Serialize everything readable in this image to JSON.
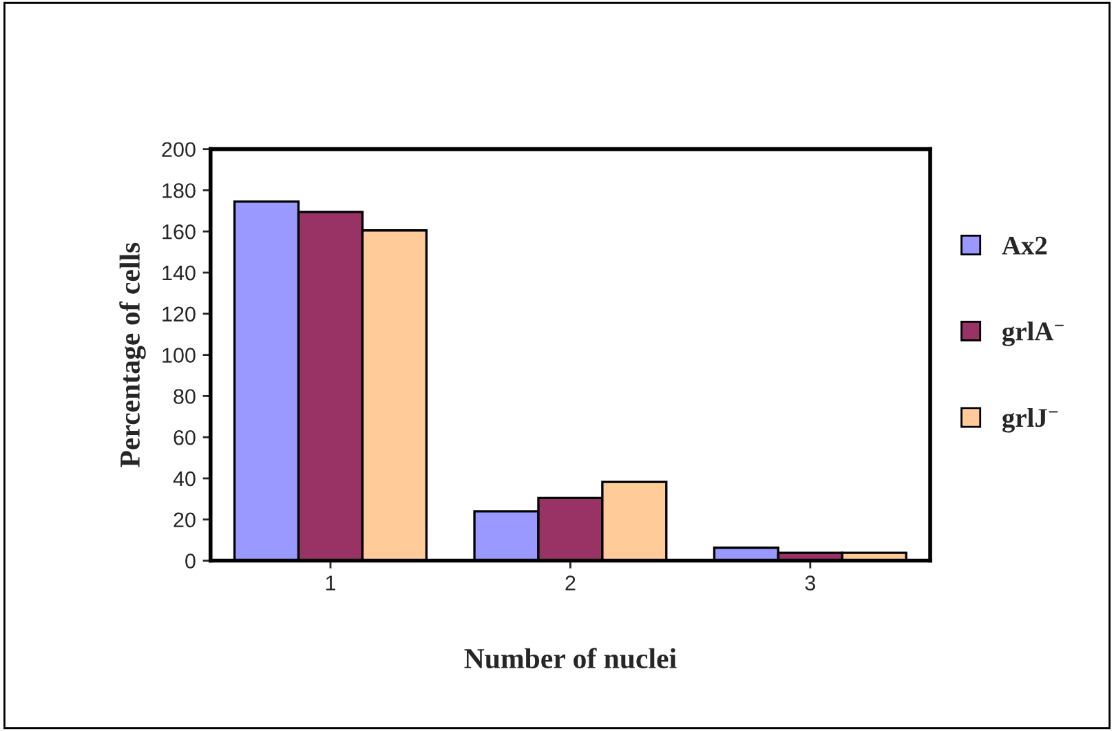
{
  "chart_data": {
    "type": "bar",
    "xlabel": "Number of nuclei",
    "ylabel": "Percentage of cells",
    "categories": [
      "1",
      "2",
      "3"
    ],
    "series": [
      {
        "name": "Ax2",
        "color": "#9999ff",
        "values": [
          174.5,
          24,
          6.3
        ]
      },
      {
        "name": "grlA$^{−}$",
        "color": "#993366",
        "values": [
          169.5,
          30.5,
          3.8
        ]
      },
      {
        "name": "grlJ$^{−}$",
        "color": "#ffcc99",
        "values": [
          160.5,
          38.3,
          3.8
        ]
      }
    ],
    "ylim": [
      0,
      200
    ],
    "yticks": [
      0,
      20,
      40,
      60,
      80,
      100,
      120,
      140,
      160,
      180,
      200
    ],
    "grid": false,
    "legend": "right"
  }
}
